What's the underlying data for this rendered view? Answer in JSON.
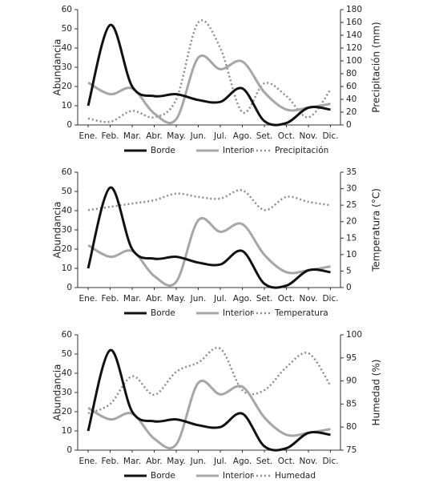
{
  "chart_data": [
    {
      "type": "line",
      "ylabel": "Abundancia",
      "y2label": "Precipitación (mm)",
      "categories": [
        "Ene.",
        "Feb.",
        "Mar.",
        "Abr.",
        "May.",
        "Jun.",
        "Jul.",
        "Ago.",
        "Set.",
        "Oct.",
        "Nov.",
        "Dic."
      ],
      "series": [
        {
          "name": "Borde",
          "color": "#111111",
          "values": [
            10,
            52,
            20,
            15,
            16,
            13,
            12,
            19,
            2,
            1,
            9,
            8
          ]
        },
        {
          "name": "Interior",
          "color": "#a6a6a6",
          "values": [
            22,
            16,
            19,
            6,
            3,
            35,
            29,
            33,
            17,
            8,
            9,
            11
          ]
        },
        {
          "name": "Precipitación",
          "color": "#8c8c8c",
          "axis": "y2",
          "values": [
            10,
            5,
            22,
            12,
            40,
            160,
            120,
            20,
            65,
            45,
            12,
            55
          ]
        }
      ],
      "ylim": [
        0,
        60
      ],
      "yticks": [
        0,
        10,
        20,
        30,
        40,
        50,
        60
      ],
      "y2lim": [
        0,
        180
      ],
      "y2ticks": [
        0,
        20,
        40,
        60,
        80,
        100,
        120,
        140,
        160,
        180
      ],
      "legend": "bottom"
    },
    {
      "type": "line",
      "ylabel": "Abundancia",
      "y2label": "Temperatura (°C)",
      "categories": [
        "Ene.",
        "Feb.",
        "Mar.",
        "Abr.",
        "May.",
        "Jun.",
        "Jul.",
        "Ago.",
        "Set.",
        "Oct.",
        "Nov.",
        "Dic."
      ],
      "series": [
        {
          "name": "Borde",
          "color": "#111111",
          "values": [
            10,
            52,
            20,
            15,
            16,
            13,
            12,
            19,
            2,
            1,
            9,
            8
          ]
        },
        {
          "name": "Interior",
          "color": "#a6a6a6",
          "values": [
            22,
            16,
            19,
            6,
            3,
            35,
            29,
            33,
            17,
            8,
            9,
            11
          ]
        },
        {
          "name": "Temperatura",
          "color": "#8c8c8c",
          "axis": "y2",
          "values": [
            23.5,
            24.5,
            25.5,
            26.5,
            28.5,
            27.5,
            27,
            29.5,
            23.5,
            27.5,
            26,
            25
          ]
        }
      ],
      "ylim": [
        0,
        60
      ],
      "yticks": [
        0,
        10,
        20,
        30,
        40,
        50,
        60
      ],
      "y2lim": [
        0,
        35
      ],
      "y2ticks": [
        0,
        5,
        10,
        15,
        20,
        25,
        30,
        35
      ],
      "legend": "bottom"
    },
    {
      "type": "line",
      "ylabel": "Abundancia",
      "y2label": "Humedad (%)",
      "categories": [
        "Ene.",
        "Feb.",
        "Mar.",
        "Abr.",
        "May.",
        "Jun.",
        "Jul.",
        "Ago.",
        "Set.",
        "Oct.",
        "Nov.",
        "Dic."
      ],
      "series": [
        {
          "name": "Borde",
          "color": "#111111",
          "values": [
            10,
            52,
            20,
            15,
            16,
            13,
            12,
            19,
            2,
            1,
            9,
            8
          ]
        },
        {
          "name": "Interior",
          "color": "#a6a6a6",
          "values": [
            22,
            16,
            19,
            6,
            3,
            35,
            29,
            33,
            17,
            8,
            9,
            11
          ]
        },
        {
          "name": "Humedad",
          "color": "#8c8c8c",
          "axis": "y2",
          "values": [
            83,
            85,
            91,
            87,
            92,
            94,
            97,
            88,
            88,
            93,
            96,
            89
          ]
        }
      ],
      "ylim": [
        0,
        60
      ],
      "yticks": [
        0,
        10,
        20,
        30,
        40,
        50,
        60
      ],
      "y2lim": [
        75,
        100
      ],
      "y2ticks": [
        75,
        80,
        85,
        90,
        95,
        100
      ],
      "legend": "bottom"
    }
  ]
}
